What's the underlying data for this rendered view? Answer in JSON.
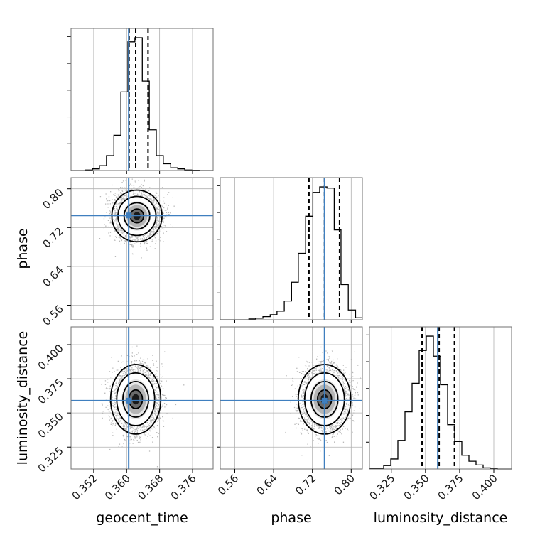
{
  "chart_data": {
    "type": "corner",
    "parameters": [
      "geocent_time",
      "phase",
      "luminosity_distance"
    ],
    "axis_labels": {
      "x": [
        "geocent_time",
        "phase",
        "luminosity_distance"
      ],
      "y": [
        "",
        "phase",
        "luminosity_distance"
      ]
    },
    "ranges": {
      "geocent_time": [
        0.3465,
        0.381
      ],
      "phase": [
        0.53,
        0.823
      ],
      "luminosity_distance": [
        0.309,
        0.413
      ]
    },
    "ticks": {
      "geocent_time": {
        "values": [
          0.352,
          0.36,
          0.368,
          0.376
        ],
        "labels": [
          "0.352",
          "0.360",
          "0.368",
          "0.376"
        ]
      },
      "phase": {
        "values": [
          0.56,
          0.64,
          0.72,
          0.8
        ],
        "labels": [
          "0.56",
          "0.64",
          "0.72",
          "0.80"
        ]
      },
      "luminosity_distance": {
        "values": [
          0.325,
          0.35,
          0.375,
          0.4
        ],
        "labels": [
          "0.325",
          "0.350",
          "0.375",
          "0.400"
        ]
      }
    },
    "truths": {
      "geocent_time": 0.3605,
      "phase": 0.745,
      "luminosity_distance": 0.359
    },
    "quantiles": {
      "geocent_time": [
        0.3606,
        0.3622,
        0.3652
      ],
      "phase": [
        0.713,
        0.745,
        0.776
      ],
      "luminosity_distance": [
        0.3475,
        0.36,
        0.3712
      ]
    },
    "histograms": {
      "geocent_time": {
        "edges": [
          0.3465,
          0.3482,
          0.35,
          0.3517,
          0.3534,
          0.3551,
          0.3569,
          0.3586,
          0.3603,
          0.362,
          0.3638,
          0.3655,
          0.3672,
          0.3689,
          0.3707,
          0.3724,
          0.3741,
          0.3758,
          0.3776,
          0.3793,
          0.381
        ],
        "counts": [
          0,
          0,
          2,
          6,
          18,
          55,
          130,
          290,
          475,
          490,
          330,
          150,
          55,
          25,
          10,
          6,
          2,
          1,
          0,
          0
        ]
      },
      "phase": {
        "edges": [
          0.53,
          0.545,
          0.559,
          0.574,
          0.589,
          0.603,
          0.618,
          0.633,
          0.647,
          0.662,
          0.677,
          0.691,
          0.706,
          0.721,
          0.735,
          0.75,
          0.765,
          0.779,
          0.794,
          0.809,
          0.823
        ],
        "counts": [
          0,
          0,
          0,
          0,
          2,
          4,
          8,
          13,
          22,
          48,
          96,
          170,
          265,
          326,
          340,
          337,
          230,
          90,
          25,
          5
        ]
      },
      "luminosity_distance": {
        "edges": [
          0.309,
          0.3142,
          0.3194,
          0.3246,
          0.3298,
          0.335,
          0.3402,
          0.3454,
          0.3506,
          0.3558,
          0.361,
          0.3662,
          0.3714,
          0.3766,
          0.3818,
          0.387,
          0.3922,
          0.3974,
          0.4026,
          0.4078,
          0.413
        ],
        "counts": [
          1,
          3,
          12,
          35,
          100,
          200,
          300,
          415,
          465,
          395,
          295,
          155,
          96,
          48,
          27,
          14,
          4,
          2,
          0,
          0
        ]
      }
    },
    "joint_2d": {
      "phase_vs_geocent_time": {
        "x": "geocent_time",
        "y": "phase",
        "center": [
          0.3625,
          0.744
        ],
        "spread": [
          0.0027,
          0.024
        ],
        "rho": 0.05
      },
      "luminosity_distance_vs_geocent_time": {
        "x": "geocent_time",
        "y": "luminosity_distance",
        "center": [
          0.3622,
          0.36
        ],
        "spread": [
          0.0027,
          0.0115
        ],
        "rho": 0.0
      },
      "luminosity_distance_vs_phase": {
        "x": "phase",
        "y": "luminosity_distance",
        "center": [
          0.745,
          0.36
        ],
        "spread": [
          0.024,
          0.0115
        ],
        "rho": 0.0
      }
    },
    "colors": {
      "truth": "#3f7fbf",
      "lines": "#000000",
      "grid": "#b0b0b0"
    },
    "grid": true
  }
}
